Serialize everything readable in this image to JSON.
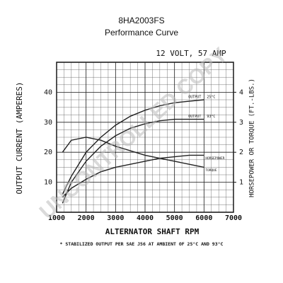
{
  "chart_data": {
    "type": "line",
    "title": "8HA2003FS",
    "subtitle": "Performance Curve",
    "rating": "12 VOLT, 57 AMP",
    "xlabel": "ALTERNATOR SHAFT RPM",
    "ylabel": "OUTPUT CURRENT (AMPERES)",
    "y2label": "HORSEPOWER OR TORQUE (FT.-LBS.)",
    "footnote": "* STABILIZED OUTPUT PER SAE J56 AT AMBIENT OF 25°C AND 93°C",
    "watermark": "UNCONTROLLED COPY",
    "x": [
      1200,
      1500,
      2000,
      2500,
      3000,
      3500,
      4000,
      4500,
      5000,
      5500,
      6000
    ],
    "xlim": [
      1000,
      7000
    ],
    "xticks": [
      1000,
      2000,
      3000,
      4000,
      5000,
      6000,
      7000
    ],
    "ylim": [
      0,
      50
    ],
    "yticks": [
      10,
      20,
      30,
      40
    ],
    "y2lim": [
      0,
      5
    ],
    "y2ticks": [
      1,
      2,
      3,
      4
    ],
    "grid": true,
    "series": [
      {
        "label": "OUTPUT",
        "name": "25°C",
        "color": "#222222",
        "values": [
          6,
          12,
          20,
          25,
          29,
          32,
          34,
          35.5,
          36.5,
          37,
          37.5
        ]
      },
      {
        "label": "OUTPUT",
        "name": "93°C",
        "color": "#222222",
        "values": [
          3,
          10,
          17,
          22,
          25.5,
          28,
          29.5,
          30.5,
          31,
          31,
          31
        ]
      },
      {
        "name": "HORSEPOWER",
        "axis": "y2",
        "color": "#222222",
        "values": [
          0.5,
          0.8,
          1.1,
          1.35,
          1.5,
          1.6,
          1.7,
          1.8,
          1.85,
          1.9,
          1.9
        ]
      },
      {
        "name": "TORQUE",
        "axis": "y2",
        "color": "#222222",
        "values": [
          2,
          2.4,
          2.5,
          2.4,
          2.2,
          2.05,
          1.9,
          1.8,
          1.7,
          1.6,
          1.5
        ]
      }
    ]
  }
}
